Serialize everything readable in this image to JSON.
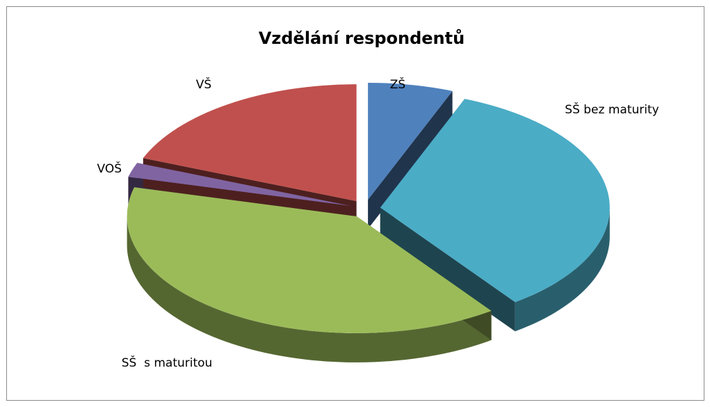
{
  "chart_data": {
    "type": "pie",
    "title": "Vzdělání respondentů",
    "three_d": true,
    "categories": [
      "ZŠ",
      "SŠ bez maturity",
      "SŠ  s maturitou",
      "VOŠ",
      "VŠ"
    ],
    "values": [
      6,
      34,
      39,
      2,
      19
    ],
    "colors": [
      "#4f81bd",
      "#4bacc6",
      "#9bbb59",
      "#8064a2",
      "#c0504d"
    ]
  }
}
